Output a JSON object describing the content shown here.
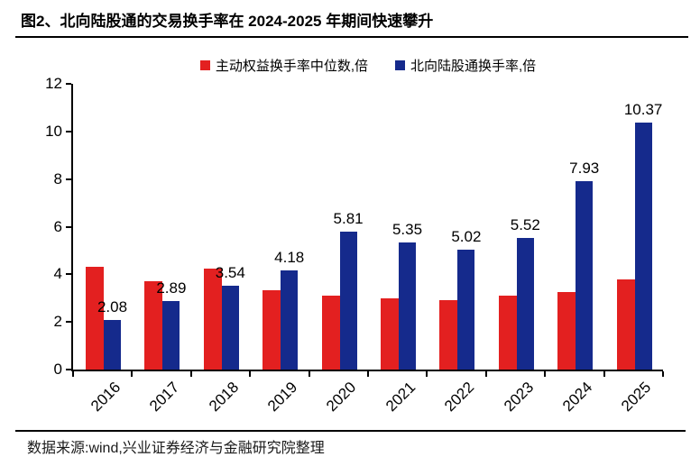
{
  "title": "图2、北向陆股通的交易换手率在 2024-2025 年期间快速攀升",
  "source": "数据来源:wind,兴业证券经济与金融研究院整理",
  "chart_data": {
    "type": "bar",
    "title": "图2、北向陆股通的交易换手率在 2024-2025 年期间快速攀升",
    "categories": [
      "2016",
      "2017",
      "2018",
      "2019",
      "2020",
      "2021",
      "2022",
      "2023",
      "2024",
      "2025"
    ],
    "series": [
      {
        "name": "主动权益换手率中位数,倍",
        "color": "#e32020",
        "values": [
          4.3,
          3.7,
          4.25,
          3.35,
          3.1,
          3.0,
          2.9,
          3.1,
          3.25,
          3.8
        ],
        "data_labels": false
      },
      {
        "name": "北向陆股通换手率,倍",
        "color": "#152a8c",
        "values": [
          2.08,
          2.89,
          3.54,
          4.18,
          5.81,
          5.35,
          5.02,
          5.52,
          7.93,
          10.37
        ],
        "data_labels": true
      }
    ],
    "xlabel": "",
    "ylabel": "",
    "ylim": [
      0,
      12
    ],
    "yticks": [
      0,
      2,
      4,
      6,
      8,
      10,
      12
    ],
    "grid": false,
    "legend_position": "top-center",
    "x_tick_label_rotation": 45
  }
}
